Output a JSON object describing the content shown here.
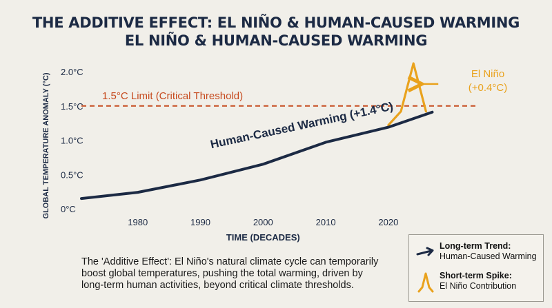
{
  "title": "THE ADDITIVE EFFECT: EL NIÑO & HUMAN-CAUSED WARMING",
  "subtitle": "EL NIÑO & HUMAN-CAUSED WARMING",
  "colors": {
    "trend": "#1c2a44",
    "spike": "#e9a21d",
    "threshold": "#c64a1e",
    "background": "#f1efe9"
  },
  "chart_data": {
    "type": "line",
    "xlabel": "TIME (DECADES)",
    "ylabel": "GLOBAL TEMPERATURE ANOMALY (°C)",
    "xlim": [
      1971,
      2034
    ],
    "ylim": [
      0,
      2.0
    ],
    "x_ticks": [
      1980,
      1990,
      2000,
      2010,
      2020
    ],
    "y_ticks": [
      {
        "value": 0,
        "label": "0°C"
      },
      {
        "value": 0.5,
        "label": "0.5°C"
      },
      {
        "value": 1.0,
        "label": "1.0°C"
      },
      {
        "value": 1.5,
        "label": "1.5°C"
      },
      {
        "value": 2.0,
        "label": "2.0°C"
      }
    ],
    "grid": false,
    "series": [
      {
        "name": "Human-Caused Warming (+1.4°C)",
        "values": [
          {
            "x": 1971,
            "y": 0.15
          },
          {
            "x": 1980,
            "y": 0.24
          },
          {
            "x": 1990,
            "y": 0.42
          },
          {
            "x": 2000,
            "y": 0.65
          },
          {
            "x": 2010,
            "y": 0.97
          },
          {
            "x": 2020,
            "y": 1.19
          },
          {
            "x": 2027,
            "y": 1.41
          }
        ]
      },
      {
        "name": "El Niño (+0.4°C)",
        "values": [
          {
            "x": 2020,
            "y": 1.22
          },
          {
            "x": 2022,
            "y": 1.42
          },
          {
            "x": 2024,
            "y": 2.12
          },
          {
            "x": 2026,
            "y": 1.42
          }
        ]
      }
    ],
    "threshold": {
      "value": 1.5,
      "label": "1.5°C Limit (Critical Threshold)"
    },
    "annotations": {
      "trend_label": "Human-Caused Warming (+1.4°C)",
      "spike_label_line1": "El Niño",
      "spike_label_line2": "(+0.4°C)"
    }
  },
  "caption": "The 'Additive Effect': El Niño's natural climate cycle can temporarily boost global temperatures, pushing the total warming, driven by long-term human activities, beyond critical climate thresholds.",
  "legend": {
    "items": [
      {
        "title": "Long-term Trend:",
        "text": "Human-Caused Warming",
        "icon": "arrow-right-icon"
      },
      {
        "title": "Short-term Spike:",
        "text": "El Niño Contribution",
        "icon": "spike-icon"
      }
    ]
  }
}
